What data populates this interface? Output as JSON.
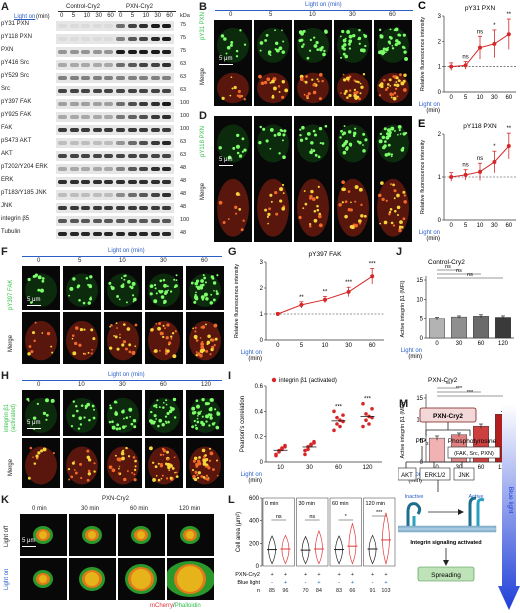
{
  "panels": {
    "A": {
      "letter": "A",
      "light_on": "Light on",
      "unit": "(min)",
      "groups": [
        "Control-Cry2",
        "PXN-Cry2"
      ],
      "times": [
        "0",
        "5",
        "10",
        "30",
        "60",
        "0",
        "5",
        "10",
        "30",
        "60"
      ],
      "kda": [
        "kDa",
        "75",
        "75",
        "75",
        "63",
        "63",
        "63",
        "100",
        "100",
        "100",
        "63",
        "63",
        "48",
        "48",
        "48",
        "48",
        "100",
        "48"
      ],
      "rows": [
        "pY31 PXN",
        "pY118 PXN",
        "PXN",
        "pY416 Src",
        "pY529 Src",
        "Src",
        "pY397 FAK",
        "pY925 FAK",
        "FAK",
        "pS473 AKT",
        "AKT",
        "pT202/Y204 ERK",
        "ERK",
        "pT183/Y185 JNK",
        "JNK",
        "integrin β5",
        "Tubulin"
      ]
    },
    "B": {
      "letter": "B",
      "light_on": "Light on (min)",
      "times": [
        "0",
        "5",
        "10",
        "30",
        "60"
      ],
      "stain": "pY31 PXN",
      "merge": "Merge",
      "scale": "5 μm"
    },
    "C": {
      "letter": "C",
      "title": "pY31 PXN",
      "ylabel": "Relative fluorescence intensity",
      "xlabel": "Light on",
      "xunit": "(min)",
      "sig": [
        "ns",
        "ns",
        "*",
        "**"
      ]
    },
    "D": {
      "letter": "D",
      "stain": "pY118 PXN",
      "merge": "Merge",
      "scale": "5 μm"
    },
    "E": {
      "letter": "E",
      "title": "pY118 PXN",
      "ylabel": "Relative fluorescence intensity",
      "xlabel": "Light on",
      "xunit": "(min)",
      "sig": [
        "ns",
        "ns",
        "*",
        "**"
      ]
    },
    "F": {
      "letter": "F",
      "light_on": "Light on (min)",
      "times": [
        "0",
        "5",
        "10",
        "30",
        "60"
      ],
      "stain": "pY397 FAK",
      "merge": "Merge",
      "scale": "5 μm"
    },
    "G": {
      "letter": "G",
      "title": "pY397 FAK",
      "ylabel": "Relative fluorescence intensity",
      "xlabel": "Light on",
      "xunit": "(min)",
      "sig": [
        "**",
        "**",
        "***",
        "***"
      ]
    },
    "H": {
      "letter": "H",
      "light_on": "Light on (min)",
      "times": [
        "0",
        "10",
        "30",
        "60",
        "120"
      ],
      "stain": "integrin β1",
      "stain2": "(activated)",
      "merge": "Merge",
      "scale": "5 μm"
    },
    "I": {
      "letter": "I",
      "legend": "integrin β1 (activated)",
      "ylabel": "Pearson's correlation",
      "xlabel": "Light on",
      "xunit": "(min)",
      "sig": [
        "***",
        "***"
      ]
    },
    "J": {
      "letter": "J",
      "top_title": "Control-Cry2",
      "bottom_title": "PXN-Cry2",
      "ylabel": "Active integrin β1 (MFI)",
      "xlabel": "Light on",
      "xunit": "(min)",
      "top_sig": [
        "ns",
        "ns",
        "ns"
      ],
      "bottom_sig": [
        "**",
        "***",
        "***"
      ]
    },
    "K": {
      "letter": "K",
      "title": "PXN-Cry2",
      "times": [
        "0 min",
        "30 min",
        "60 min",
        "120 min"
      ],
      "row1": "Light off",
      "row2": "Light on",
      "scale": "5 μm",
      "stain_a": "mCherry",
      "stain_sep": "/",
      "stain_b": "Phalloidin"
    },
    "L": {
      "letter": "L",
      "ylabel": "Cell area (μm²)",
      "panels": [
        "0 min",
        "30 min",
        "60 min",
        "120 min"
      ],
      "sig": [
        "ns",
        "ns",
        "*",
        "***"
      ],
      "row_pxn": "PXN-Cry2",
      "row_blue": "Blue light",
      "row_n": "n",
      "pxn_vals": [
        "+",
        "+",
        "+",
        "+",
        "+",
        "+",
        "+",
        "+"
      ],
      "blue_vals": [
        "-",
        "+",
        "-",
        "+",
        "-",
        "+",
        "-",
        "+"
      ],
      "n_vals": [
        "85",
        "96",
        "70",
        "84",
        "83",
        "66",
        "91",
        "103"
      ]
    },
    "M": {
      "letter": "M",
      "pxn_cry2": "PXN-Cry2",
      "pip": "PIP",
      "pip_sub": "3",
      "phospho": "Phosphotyrosine",
      "phospho_sub": "(FAK, Src, PXN)",
      "akt": "AKT",
      "erk": "ERK1/2",
      "jnk": "JNK",
      "inactive": "Inactive",
      "active": "Active",
      "integrin_text": "Integrin signaling activated",
      "spreading": "Spreading",
      "blue_light": "Blue light"
    }
  },
  "chart_data": [
    {
      "type": "line",
      "title": "pY31 PXN",
      "x": [
        0,
        5,
        10,
        30,
        60
      ],
      "xlabel": "Light on (min)",
      "ylabel": "Relative fluorescence intensity",
      "series": [
        {
          "values": [
            1.0,
            1.05,
            1.75,
            1.9,
            2.28
          ],
          "err": [
            0.15,
            0.15,
            0.45,
            0.55,
            0.6
          ]
        }
      ],
      "ylim": [
        0,
        3
      ],
      "yticks": [
        0,
        1,
        2,
        3
      ],
      "color": "#d62728"
    },
    {
      "type": "line",
      "title": "pY118 PXN",
      "x": [
        0,
        5,
        10,
        30,
        60
      ],
      "xlabel": "Light on (min)",
      "ylabel": "Relative fluorescence intensity",
      "series": [
        {
          "values": [
            1.0,
            1.05,
            1.12,
            1.35,
            1.72
          ],
          "err": [
            0.1,
            0.12,
            0.2,
            0.25,
            0.3
          ]
        }
      ],
      "ylim": [
        0,
        2
      ],
      "yticks": [
        0,
        1,
        2
      ],
      "color": "#d62728"
    },
    {
      "type": "line",
      "title": "pY397 FAK",
      "x": [
        0,
        5,
        10,
        30,
        60
      ],
      "xlabel": "Light on (min)",
      "ylabel": "Relative fluorescence intensity",
      "series": [
        {
          "values": [
            1.0,
            1.35,
            1.55,
            1.85,
            2.45
          ],
          "err": [
            0.05,
            0.12,
            0.12,
            0.18,
            0.3
          ]
        }
      ],
      "ylim": [
        0,
        3
      ],
      "yticks": [
        0,
        1,
        2,
        3
      ],
      "color": "#d62728"
    },
    {
      "type": "scatter",
      "title": "",
      "x": [
        10,
        30,
        60,
        120
      ],
      "xlabel": "Light on (min)",
      "ylabel": "Pearson's correlation",
      "series": [
        {
          "name": "integrin β1 (activated)",
          "points": [
            [
              0.05,
              0.08,
              0.1,
              0.12,
              0.06,
              0.09,
              0.11,
              0.13
            ],
            [
              0.06,
              0.1,
              0.13,
              0.15,
              0.09,
              0.12,
              0.14,
              0.16
            ],
            [
              0.25,
              0.3,
              0.33,
              0.37,
              0.4,
              0.35,
              0.28,
              0.32
            ],
            [
              0.28,
              0.33,
              0.36,
              0.42,
              0.46,
              0.38,
              0.3,
              0.35
            ]
          ]
        }
      ],
      "ylim": [
        0,
        0.6
      ],
      "yticks": [
        0,
        0.2,
        0.4,
        0.6
      ],
      "color": "#d62728"
    },
    {
      "type": "bar",
      "title": "Control-Cry2",
      "categories": [
        "0",
        "30",
        "60",
        "120"
      ],
      "values": [
        5.0,
        5.4,
        5.6,
        5.3
      ],
      "err": [
        0.3,
        0.3,
        0.4,
        0.4
      ],
      "ylim": [
        0,
        15
      ],
      "yticks": [
        0,
        5,
        10,
        15
      ],
      "colors": [
        "#b3b3b3",
        "#8f8f8f",
        "#6b6b6b",
        "#3a3a3a"
      ]
    },
    {
      "type": "bar",
      "title": "PXN-Cry2",
      "categories": [
        "0",
        "30",
        "60",
        "120"
      ],
      "values": [
        5.6,
        6.4,
        8.4,
        11.2
      ],
      "err": [
        0.5,
        0.4,
        0.5,
        0.6
      ],
      "ylim": [
        0,
        15
      ],
      "yticks": [
        0,
        5,
        10,
        15
      ],
      "colors": [
        "#f0b2b2",
        "#e08080",
        "#cc4040",
        "#b01e1e"
      ]
    },
    {
      "type": "violin",
      "title": "",
      "categories": [
        "0 min -",
        "0 min +",
        "30 min -",
        "30 min +",
        "60 min -",
        "60 min +",
        "120 min -",
        "120 min +"
      ],
      "medians": [
        145,
        150,
        140,
        150,
        145,
        175,
        150,
        230
      ],
      "ylim": [
        0,
        600
      ],
      "yticks": [
        0,
        200,
        400,
        600
      ],
      "ylabel": "Cell area (μm²)"
    }
  ]
}
